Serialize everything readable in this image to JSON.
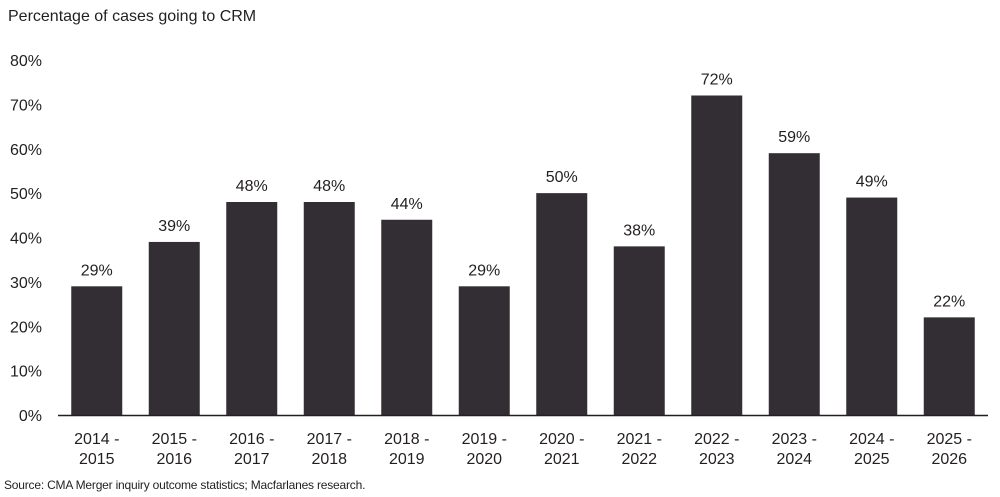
{
  "chart_title": "Percentage of cases going to CRM",
  "source": "Source: CMA Merger inquiry outcome statistics; Macfarlanes research.",
  "colors": {
    "bar": "#332e33",
    "axis": "#231f20"
  },
  "chart_data": {
    "type": "bar",
    "title": "Percentage of cases going to CRM",
    "xlabel": "",
    "ylabel": "",
    "categories": [
      [
        "2014 -",
        "2015"
      ],
      [
        "2015 -",
        "2016"
      ],
      [
        "2016 -",
        "2017"
      ],
      [
        "2017 -",
        "2018"
      ],
      [
        "2018 -",
        "2019"
      ],
      [
        "2019 -",
        "2020"
      ],
      [
        "2020 -",
        "2021"
      ],
      [
        "2021 -",
        "2022"
      ],
      [
        "2022 -",
        "2023"
      ],
      [
        "2023 -",
        "2024"
      ],
      [
        "2024 -",
        "2025"
      ],
      [
        "2025 -",
        "2026"
      ]
    ],
    "values": [
      29,
      39,
      48,
      48,
      44,
      29,
      50,
      38,
      72,
      59,
      49,
      22
    ],
    "data_labels": [
      "29%",
      "39%",
      "48%",
      "48%",
      "44%",
      "29%",
      "50%",
      "38%",
      "72%",
      "59%",
      "49%",
      "22%"
    ],
    "y_ticks": [
      "0%",
      "10%",
      "20%",
      "30%",
      "40%",
      "50%",
      "60%",
      "70%",
      "80%"
    ],
    "ylim": [
      0,
      80
    ],
    "grid": false,
    "legend": "none"
  }
}
